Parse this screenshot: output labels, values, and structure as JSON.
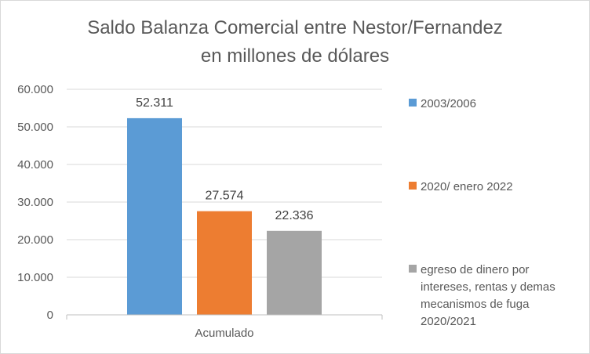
{
  "chart_data": {
    "type": "bar",
    "title_lines": [
      "Saldo Balanza Comercial entre Nestor/Fernandez",
      "en millones de dólares"
    ],
    "categories": [
      "Acumulado"
    ],
    "series": [
      {
        "name": "2003/2006",
        "values": [
          52311
        ],
        "label": "52.311",
        "color": "#5B9BD5"
      },
      {
        "name": "2020/ enero 2022",
        "values": [
          27574
        ],
        "label": "27.574",
        "color": "#ED7D31"
      },
      {
        "name": "egreso de dinero por intereses, rentas y demas mecanismos de fuga 2020/2021",
        "name_lines": [
          "egreso de dinero por",
          "intereses, rentas y demas",
          "mecanismos de fuga",
          "2020/2021"
        ],
        "values": [
          22336
        ],
        "label": "22.336",
        "color": "#A5A5A5"
      }
    ],
    "ylim": [
      0,
      60000
    ],
    "y_ticks": [
      0,
      10000,
      20000,
      30000,
      40000,
      50000,
      60000
    ],
    "y_tick_labels": [
      "0",
      "10.000",
      "20.000",
      "30.000",
      "40.000",
      "50.000",
      "60.000"
    ],
    "gridlines": true,
    "legend_position": "right"
  }
}
